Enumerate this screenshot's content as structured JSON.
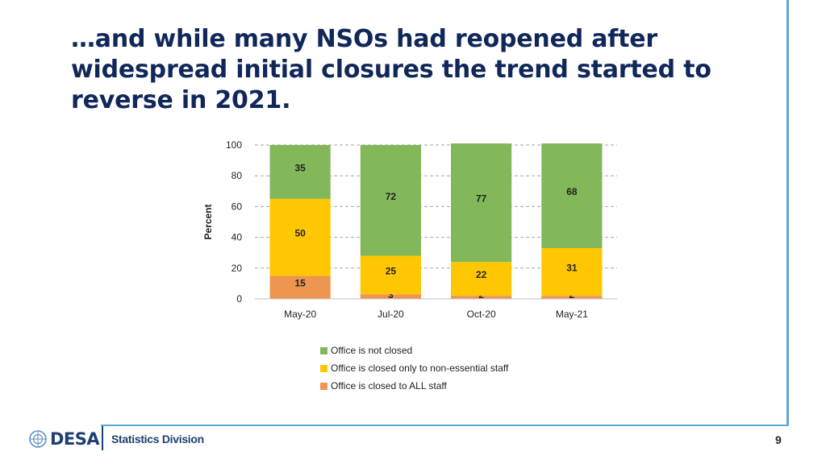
{
  "slide": {
    "title": "…and while many NSOs had reopened after widespread initial closures the trend started to reverse in 2021.",
    "page_number": "9"
  },
  "footer": {
    "org": "DESA",
    "division": "Statistics Division"
  },
  "colors": {
    "not_closed": "#82b75a",
    "closed_non_essential": "#ffc702",
    "closed_all": "#ee9550",
    "title": "#10275a",
    "accent_rule": "#5aa9d6"
  },
  "chart_data": {
    "type": "bar",
    "stacked": true,
    "categories": [
      "May-20",
      "Jul-20",
      "Oct-20",
      "May-21"
    ],
    "series": [
      {
        "name": "Office is closed to ALL staff",
        "values": [
          15,
          3,
          2,
          2
        ],
        "color": "#ee9550"
      },
      {
        "name": "Office is closed only to non-essential staff",
        "values": [
          50,
          25,
          22,
          31
        ],
        "color": "#ffc702"
      },
      {
        "name": "Office is not closed",
        "values": [
          35,
          72,
          77,
          68
        ],
        "color": "#82b75a"
      }
    ],
    "ylabel": "Percent",
    "xlabel": "",
    "ylim": [
      0,
      100
    ],
    "yticks": [
      0,
      20,
      40,
      60,
      80,
      100
    ],
    "grid": "dashed horizontal",
    "legend_position": "bottom",
    "legend": [
      {
        "label": "Office is not closed",
        "color": "#82b75a"
      },
      {
        "label": "Office is closed only to non-essential staff",
        "color": "#ffc702"
      },
      {
        "label": "Office is closed to ALL staff",
        "color": "#ee9550"
      }
    ]
  }
}
